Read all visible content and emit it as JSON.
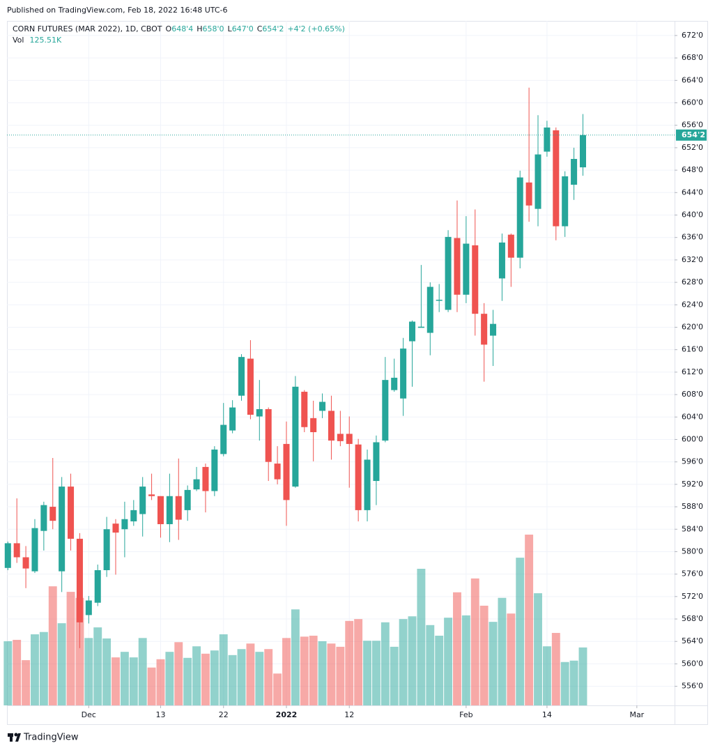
{
  "published": "Published on TradingView.com, Feb 18, 2022 16:48 UTC-6",
  "footer": "TradingView",
  "chart_data": {
    "type": "candlestick",
    "title": "CORN FUTURES (MAR 2022), 1D, CBOT",
    "header": {
      "o": "O",
      "open": "648'4",
      "h": "H",
      "high": "658'0",
      "l": "L",
      "low": "647'0",
      "c": "C",
      "close": "654'2",
      "change": "+4'2 (+0.65%)",
      "vol": "Vol",
      "volume": "125.51K"
    },
    "last_price_label": "654'2",
    "up_color": "#26a69a",
    "down_color": "#ef5350",
    "grid": true,
    "xlim": [
      -0.1,
      74.2
    ],
    "xticks": [
      {
        "value": 9,
        "label": "Dec"
      },
      {
        "value": 17,
        "label": "13"
      },
      {
        "value": 24,
        "label": "22"
      },
      {
        "value": 31,
        "label": "2022"
      },
      {
        "value": 38,
        "label": "12"
      },
      {
        "value": 51,
        "label": "Feb"
      },
      {
        "value": 60,
        "label": "14"
      },
      {
        "value": 70,
        "label": "Mar"
      }
    ],
    "ylim": [
      552.6,
      674.6
    ],
    "yticks": [
      {
        "value": 556,
        "label": "556'0"
      },
      {
        "value": 560,
        "label": "560'0"
      },
      {
        "value": 564,
        "label": "564'0"
      },
      {
        "value": 568,
        "label": "568'0"
      },
      {
        "value": 572,
        "label": "572'0"
      },
      {
        "value": 576,
        "label": "576'0"
      },
      {
        "value": 580,
        "label": "580'0"
      },
      {
        "value": 584,
        "label": "584'0"
      },
      {
        "value": 588,
        "label": "588'0"
      },
      {
        "value": 592,
        "label": "592'0"
      },
      {
        "value": 596,
        "label": "596'0"
      },
      {
        "value": 600,
        "label": "600'0"
      },
      {
        "value": 604,
        "label": "604'0"
      },
      {
        "value": 608,
        "label": "608'0"
      },
      {
        "value": 612,
        "label": "612'0"
      },
      {
        "value": 616,
        "label": "616'0"
      },
      {
        "value": 620,
        "label": "620'0"
      },
      {
        "value": 624,
        "label": "624'0"
      },
      {
        "value": 628,
        "label": "628'0"
      },
      {
        "value": 632,
        "label": "632'0"
      },
      {
        "value": 636,
        "label": "636'0"
      },
      {
        "value": 640,
        "label": "640'0"
      },
      {
        "value": 644,
        "label": "644'0"
      },
      {
        "value": 648,
        "label": "648'0"
      },
      {
        "value": 652,
        "label": "652'0"
      },
      {
        "value": 656,
        "label": "656'0"
      },
      {
        "value": 660,
        "label": "660'0"
      },
      {
        "value": 664,
        "label": "664'0"
      },
      {
        "value": 668,
        "label": "668'0"
      },
      {
        "value": 672,
        "label": "672'0"
      }
    ],
    "open": [
      577.1,
      581.5,
      579,
      576.5,
      583.7,
      588,
      576.5,
      591.6,
      582.3,
      568.7,
      570.9,
      576.7,
      585,
      584,
      585.4,
      586.7,
      590.2,
      589.9,
      584.9,
      589.9,
      587.4,
      591.1,
      595.1,
      590.8,
      597.4,
      601.6,
      607.8,
      614.4,
      604.1,
      605.4,
      595.7,
      599.2,
      591.6,
      608.5,
      603.8,
      605.1,
      605.1,
      601,
      601,
      599.1,
      587.4,
      592.6,
      599.8,
      608.8,
      607.3,
      617.5,
      619.9,
      619,
      624.8,
      623.1,
      635.9,
      625.8,
      634.6,
      622.4,
      618.5,
      628.7,
      636.5,
      632.4,
      645.8,
      641.1,
      651.3,
      655.1,
      638,
      645.4,
      648.5
    ],
    "high": [
      581.8,
      589.5,
      581,
      585.8,
      588.9,
      596.7,
      593.3,
      593.9,
      583.3,
      572.1,
      577.7,
      586.2,
      585.8,
      588.9,
      589.2,
      593.3,
      593.9,
      589.9,
      593.9,
      596.6,
      591.8,
      595.1,
      595.7,
      598.8,
      606.5,
      607,
      615.2,
      617.7,
      610.6,
      605.7,
      598.8,
      603.2,
      611.3,
      608.8,
      606.9,
      608.2,
      607.8,
      605.1,
      604.1,
      600.1,
      598.2,
      600.7,
      614.7,
      614.4,
      618.1,
      621.2,
      631.1,
      628,
      627.7,
      637.3,
      642.6,
      639.8,
      641,
      624.3,
      623.1,
      636.7,
      636.7,
      647.9,
      662.7,
      657.8,
      656.8,
      655.6,
      647.8,
      652,
      658
    ],
    "low": [
      576.7,
      578,
      573.5,
      576.2,
      580.2,
      584,
      572.8,
      580.2,
      562.8,
      567.2,
      570.3,
      575.5,
      575.9,
      579,
      584.6,
      582.7,
      589.2,
      582.5,
      581.7,
      582.1,
      585.5,
      590.8,
      587,
      589.9,
      597,
      601.1,
      606.9,
      603.6,
      599.8,
      592.6,
      592,
      584.6,
      591.4,
      601.3,
      596.1,
      603.8,
      596.4,
      598.8,
      591.4,
      585.4,
      585.4,
      588.3,
      599.5,
      608.5,
      604.2,
      609.4,
      620,
      615,
      622.7,
      622.7,
      622.7,
      624.3,
      618.5,
      610.3,
      613.1,
      624.7,
      627.2,
      630.5,
      638.8,
      638,
      650.4,
      635.5,
      636.1,
      642.7,
      647
    ],
    "close": [
      581.5,
      579,
      577,
      584.2,
      588.3,
      585.5,
      591.6,
      582.3,
      567.4,
      571.3,
      576.7,
      584,
      583.4,
      585.8,
      587.4,
      591.6,
      589.9,
      584.9,
      589.9,
      585.7,
      591,
      592.9,
      590.8,
      598.2,
      602.6,
      605.7,
      614.7,
      604.4,
      605.4,
      596,
      592.9,
      589.2,
      609.4,
      602.2,
      601.3,
      606.7,
      599.8,
      599.7,
      599.2,
      587.4,
      596.4,
      599.5,
      610.6,
      611,
      616.2,
      621,
      620.1,
      627.2,
      624.9,
      636.1,
      625.8,
      634.9,
      622.4,
      616.9,
      620.6,
      635.1,
      632.4,
      646.7,
      641.7,
      650.8,
      655.6,
      638,
      646.9,
      650,
      654.25
    ],
    "volume": [
      139,
      142,
      98,
      154,
      159,
      258,
      178,
      246,
      233,
      146,
      169,
      145,
      104,
      116,
      104,
      146,
      82,
      100,
      116,
      137,
      103,
      128,
      112,
      119,
      154,
      109,
      122,
      134,
      116,
      122,
      69,
      146,
      208,
      149,
      151,
      139,
      134,
      127,
      183,
      187,
      140,
      140,
      180,
      127,
      187,
      193,
      296,
      174,
      151,
      190,
      245,
      195,
      275,
      216,
      181,
      233,
      199,
      320,
      370,
      243,
      128,
      157,
      94,
      97,
      125.51
    ]
  }
}
